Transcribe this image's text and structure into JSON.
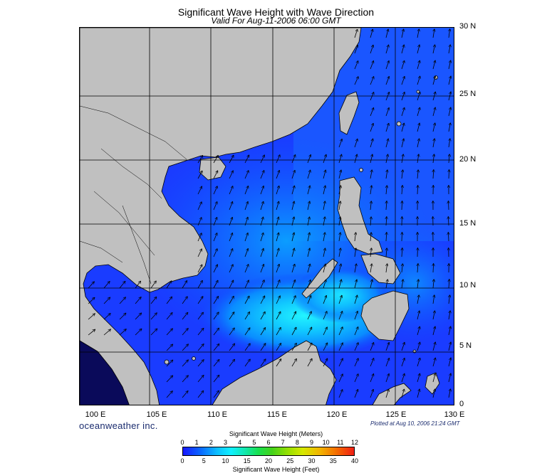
{
  "title": "Significant Wave Height with Wave Direction",
  "subtitle": "Valid For Aug-11-2006 06:00 GMT",
  "latitude_labels": [
    "30 N",
    "25 N",
    "20 N",
    "15 N",
    "10 N",
    "5 N",
    "0"
  ],
  "longitude_labels": [
    "100 E",
    "105 E",
    "110 E",
    "115 E",
    "120 E",
    "125 E",
    "130 E"
  ],
  "brand": "oceanweather inc.",
  "plotted": "Plotted at Aug 10, 2006 21:24 GMT",
  "legend": {
    "meters_label": "Significant Wave Height (Meters)",
    "meters_ticks": [
      "0",
      "1",
      "2",
      "3",
      "4",
      "5",
      "6",
      "7",
      "8",
      "9",
      "10",
      "11",
      "12"
    ],
    "feet_ticks": [
      "0",
      "5",
      "10",
      "15",
      "20",
      "25",
      "30",
      "35",
      "40"
    ],
    "feet_label": "Significant Wave Height (Feet)"
  },
  "colors": {
    "land": "#c0c0c0",
    "water_deep": "#1930ff",
    "water_low": "#0a70ff",
    "water_mid": "#0ea8ff",
    "water_high": "#18e8ff"
  },
  "map_data": {
    "lat_range": [
      0,
      30
    ],
    "lon_range": [
      99.5,
      130
    ],
    "dominant_wave_direction": "southwest"
  }
}
